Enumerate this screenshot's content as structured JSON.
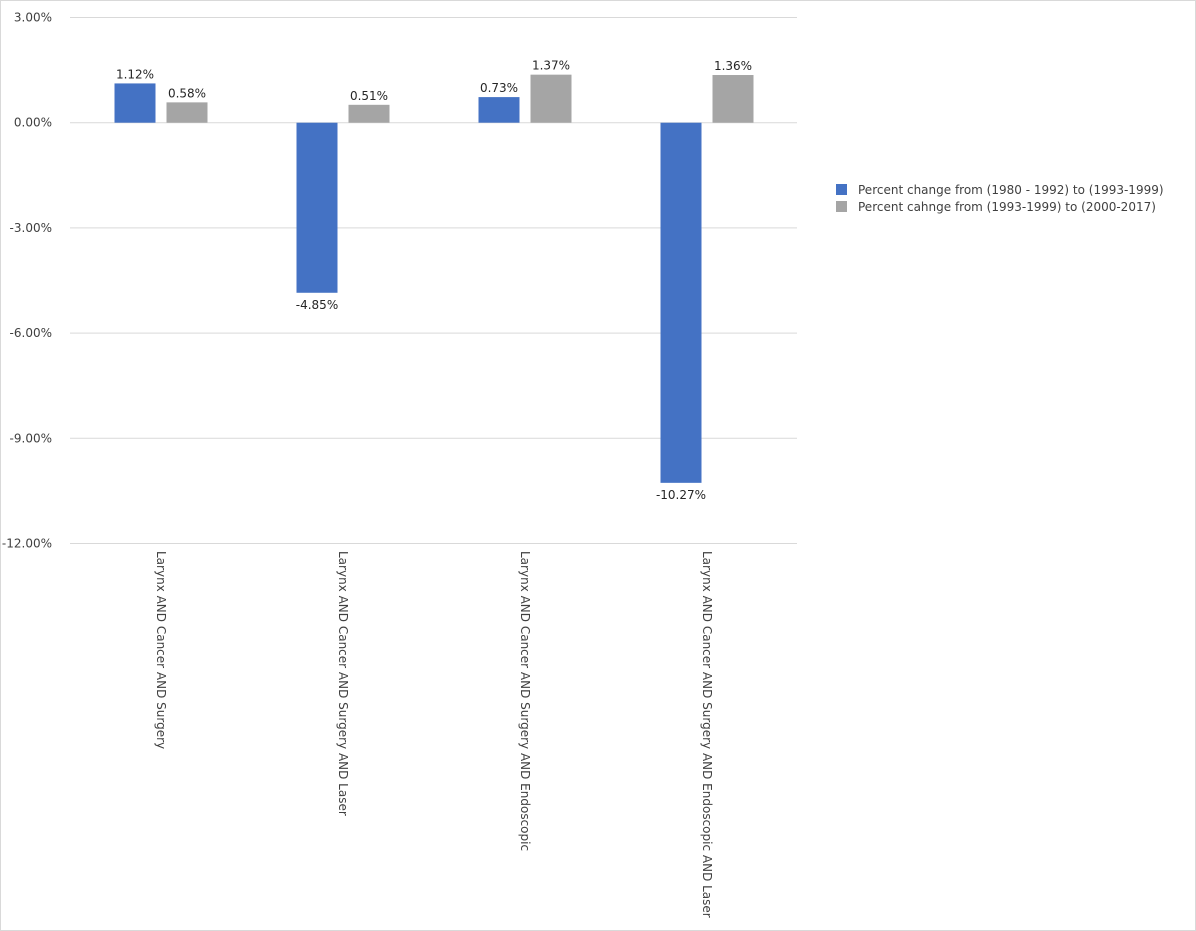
{
  "chart_data": {
    "type": "bar",
    "categories": [
      "Larynx AND Cancer AND Surgery",
      "Larynx AND Cancer AND Surgery AND Laser",
      "Larynx AND Cancer AND Surgery AND Endoscopic",
      "Larynx AND Cancer AND Surgery AND Endoscopic AND Laser"
    ],
    "series": [
      {
        "name": "Percent change from (1980 - 1992) to (1993-1999)",
        "values": [
          1.12,
          -4.85,
          0.73,
          -10.27
        ],
        "labels": [
          "1.12%",
          "-4.85%",
          "0.73%",
          "-10.27%"
        ],
        "color": "#4472c4"
      },
      {
        "name": "Percent cahnge from (1993-1999) to (2000-2017)",
        "values": [
          0.58,
          0.51,
          1.37,
          1.36
        ],
        "labels": [
          "0.58%",
          "0.51%",
          "1.37%",
          "1.36%"
        ],
        "color": "#a5a5a5"
      }
    ],
    "yticks": [
      3,
      0,
      -3,
      -6,
      -9,
      -12
    ],
    "ytick_labels": [
      "3.00%",
      "0.00%",
      "-3.00%",
      "-6.00%",
      "-9.00%",
      "-12.00%"
    ],
    "ylim": [
      -12,
      3
    ],
    "grid": true,
    "legend_position": "right",
    "title": "",
    "xlabel": "",
    "ylabel": ""
  }
}
